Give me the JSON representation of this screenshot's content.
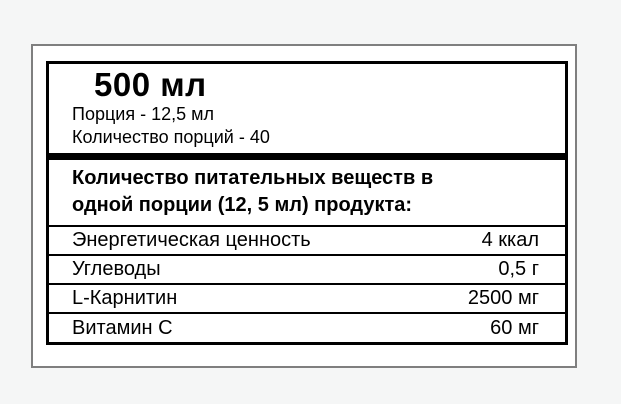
{
  "label": {
    "volume_title": "500 мл",
    "serving_line": "Порция - 12,5 мл",
    "servings_count_line": "Количество порций - 40",
    "header_lines": [
      "Количество питательных веществ в",
      "одной порции (12, 5 мл) продукта:"
    ],
    "rows": [
      {
        "name": "Энергетическая ценность",
        "value": "4 ккал"
      },
      {
        "name": "Углеводы",
        "value": "0,5 г"
      },
      {
        "name": "L-Карнитин",
        "value": "2500 мг"
      },
      {
        "name": "Витамин С",
        "value": "60 мг"
      }
    ],
    "colors": {
      "page_background": "#f5f6f6",
      "card_border": "#7f7f7f",
      "label_border": "#000000",
      "text": "#000000"
    }
  }
}
